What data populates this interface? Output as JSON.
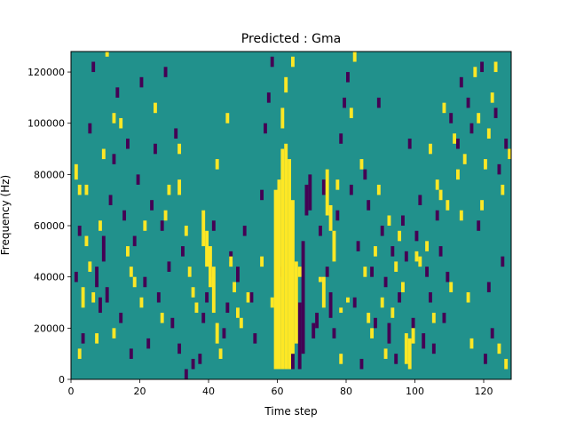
{
  "chart_data": {
    "type": "heatmap",
    "title": "Predicted : Gma",
    "xlabel": "Time step",
    "ylabel": "Frequency (Hz)",
    "xlim": [
      0,
      128
    ],
    "ylim": [
      0,
      128000
    ],
    "x_ticks": [
      0,
      20,
      40,
      60,
      80,
      100,
      120
    ],
    "y_ticks": [
      0,
      20000,
      40000,
      60000,
      80000,
      100000,
      120000
    ],
    "x_tick_labels": [
      "0",
      "20",
      "40",
      "60",
      "80",
      "100",
      "120"
    ],
    "y_tick_labels": [
      "0",
      "20000",
      "40000",
      "60000",
      "80000",
      "100000",
      "120000"
    ],
    "colormap": "viridis",
    "colors": {
      "background": "#21918c",
      "low": "#440154",
      "high": "#fde725"
    },
    "grid": false,
    "background_level": 0,
    "levels": [
      -1,
      0,
      1
    ],
    "bin_height_hz": 2000,
    "cells": {
      "high": [
        [
          10,
          126000,
          128000
        ],
        [
          24,
          104000,
          108000
        ],
        [
          31,
          88000,
          92000
        ],
        [
          9,
          86000,
          90000
        ],
        [
          1,
          78000,
          84000
        ],
        [
          2,
          72000,
          76000
        ],
        [
          4,
          72000,
          76000
        ],
        [
          8,
          58000,
          62000
        ],
        [
          4,
          52000,
          56000
        ],
        [
          5,
          42000,
          46000
        ],
        [
          3,
          28000,
          36000
        ],
        [
          6,
          30000,
          34000
        ],
        [
          12,
          16000,
          20000
        ],
        [
          7,
          14000,
          18000
        ],
        [
          2,
          8000,
          12000
        ],
        [
          20,
          28000,
          32000
        ],
        [
          18,
          36000,
          40000
        ],
        [
          21,
          58000,
          62000
        ],
        [
          14,
          98000,
          102000
        ],
        [
          12,
          100000,
          104000
        ],
        [
          31,
          72000,
          78000
        ],
        [
          33,
          56000,
          60000
        ],
        [
          34,
          40000,
          44000
        ],
        [
          35,
          32000,
          36000
        ],
        [
          36,
          26000,
          30000
        ],
        [
          38,
          52000,
          66000
        ],
        [
          39,
          44000,
          58000
        ],
        [
          40,
          36000,
          52000
        ],
        [
          41,
          26000,
          44000
        ],
        [
          42,
          14000,
          22000
        ],
        [
          43,
          8000,
          12000
        ],
        [
          46,
          44000,
          48000
        ],
        [
          45,
          100000,
          104000
        ],
        [
          42,
          82000,
          86000
        ],
        [
          47,
          34000,
          38000
        ],
        [
          48,
          24000,
          28000
        ],
        [
          49,
          20000,
          24000
        ],
        [
          51,
          30000,
          34000
        ],
        [
          55,
          44000,
          48000
        ],
        [
          58,
          28000,
          32000
        ],
        [
          59,
          4000,
          74000
        ],
        [
          60,
          4000,
          78000
        ],
        [
          61,
          4000,
          90000
        ],
        [
          62,
          4000,
          92000
        ],
        [
          63,
          4000,
          86000
        ],
        [
          64,
          10000,
          70000
        ],
        [
          65,
          14000,
          46000
        ],
        [
          61,
          98000,
          106000
        ],
        [
          62,
          112000,
          118000
        ],
        [
          64,
          122000,
          126000
        ],
        [
          66,
          40000,
          44000
        ],
        [
          72,
          38000,
          40000
        ],
        [
          73,
          28000,
          40000
        ],
        [
          74,
          64000,
          82000
        ],
        [
          75,
          58000,
          68000
        ],
        [
          76,
          46000,
          58000
        ],
        [
          77,
          74000,
          78000
        ],
        [
          78,
          6000,
          10000
        ],
        [
          78,
          26000,
          28000
        ],
        [
          80,
          30000,
          32000
        ],
        [
          81,
          102000,
          106000
        ],
        [
          82,
          124000,
          128000
        ],
        [
          84,
          82000,
          86000
        ],
        [
          85,
          40000,
          44000
        ],
        [
          86,
          22000,
          26000
        ],
        [
          88,
          48000,
          52000
        ],
        [
          89,
          72000,
          76000
        ],
        [
          90,
          28000,
          32000
        ],
        [
          92,
          60000,
          64000
        ],
        [
          94,
          42000,
          46000
        ],
        [
          95,
          54000,
          58000
        ],
        [
          96,
          34000,
          38000
        ],
        [
          97,
          6000,
          18000
        ],
        [
          98,
          4000,
          16000
        ],
        [
          99,
          14000,
          20000
        ],
        [
          100,
          46000,
          50000
        ],
        [
          101,
          44000,
          48000
        ],
        [
          103,
          50000,
          54000
        ],
        [
          104,
          88000,
          92000
        ],
        [
          105,
          22000,
          26000
        ],
        [
          106,
          74000,
          78000
        ],
        [
          107,
          70000,
          74000
        ],
        [
          108,
          104000,
          108000
        ],
        [
          109,
          66000,
          70000
        ],
        [
          110,
          34000,
          38000
        ],
        [
          111,
          92000,
          96000
        ],
        [
          112,
          78000,
          82000
        ],
        [
          113,
          62000,
          66000
        ],
        [
          114,
          84000,
          88000
        ],
        [
          116,
          12000,
          16000
        ],
        [
          117,
          118000,
          122000
        ],
        [
          118,
          100000,
          104000
        ],
        [
          119,
          66000,
          70000
        ],
        [
          120,
          82000,
          86000
        ],
        [
          121,
          94000,
          98000
        ],
        [
          122,
          108000,
          112000
        ],
        [
          123,
          120000,
          124000
        ],
        [
          124,
          10000,
          14000
        ],
        [
          125,
          72000,
          76000
        ],
        [
          126,
          4000,
          8000
        ],
        [
          127,
          86000,
          90000
        ],
        [
          27,
          62000,
          66000
        ],
        [
          28,
          72000,
          76000
        ],
        [
          16,
          48000,
          52000
        ],
        [
          17,
          40000,
          44000
        ],
        [
          26,
          22000,
          26000
        ],
        [
          87,
          16000,
          20000
        ],
        [
          91,
          8000,
          12000
        ],
        [
          93,
          24000,
          28000
        ],
        [
          115,
          30000,
          34000
        ]
      ],
      "low": [
        [
          33,
          0,
          4000
        ],
        [
          35,
          4000,
          8000
        ],
        [
          37,
          6000,
          10000
        ],
        [
          38,
          22000,
          26000
        ],
        [
          39,
          30000,
          34000
        ],
        [
          40,
          40000,
          46000
        ],
        [
          41,
          58000,
          62000
        ],
        [
          44,
          16000,
          20000
        ],
        [
          45,
          26000,
          30000
        ],
        [
          46,
          46000,
          50000
        ],
        [
          48,
          38000,
          44000
        ],
        [
          50,
          56000,
          60000
        ],
        [
          52,
          30000,
          34000
        ],
        [
          53,
          14000,
          18000
        ],
        [
          55,
          70000,
          74000
        ],
        [
          56,
          96000,
          100000
        ],
        [
          57,
          108000,
          112000
        ],
        [
          58,
          122000,
          126000
        ],
        [
          60,
          40000,
          44000
        ],
        [
          64,
          4000,
          10000
        ],
        [
          66,
          4000,
          30000
        ],
        [
          67,
          10000,
          54000
        ],
        [
          68,
          64000,
          76000
        ],
        [
          69,
          66000,
          80000
        ],
        [
          70,
          16000,
          22000
        ],
        [
          71,
          20000,
          26000
        ],
        [
          72,
          56000,
          60000
        ],
        [
          73,
          72000,
          78000
        ],
        [
          74,
          40000,
          44000
        ],
        [
          75,
          24000,
          34000
        ],
        [
          76,
          16000,
          20000
        ],
        [
          77,
          62000,
          66000
        ],
        [
          78,
          92000,
          96000
        ],
        [
          79,
          106000,
          110000
        ],
        [
          80,
          116000,
          120000
        ],
        [
          81,
          72000,
          76000
        ],
        [
          82,
          28000,
          32000
        ],
        [
          83,
          50000,
          54000
        ],
        [
          84,
          4000,
          8000
        ],
        [
          85,
          78000,
          82000
        ],
        [
          86,
          66000,
          70000
        ],
        [
          87,
          40000,
          44000
        ],
        [
          88,
          20000,
          24000
        ],
        [
          89,
          106000,
          110000
        ],
        [
          90,
          56000,
          60000
        ],
        [
          91,
          36000,
          40000
        ],
        [
          92,
          14000,
          22000
        ],
        [
          93,
          48000,
          52000
        ],
        [
          94,
          6000,
          10000
        ],
        [
          95,
          30000,
          34000
        ],
        [
          96,
          60000,
          64000
        ],
        [
          97,
          46000,
          50000
        ],
        [
          98,
          90000,
          94000
        ],
        [
          99,
          20000,
          24000
        ],
        [
          100,
          54000,
          58000
        ],
        [
          101,
          68000,
          72000
        ],
        [
          102,
          12000,
          18000
        ],
        [
          103,
          40000,
          44000
        ],
        [
          104,
          30000,
          34000
        ],
        [
          105,
          10000,
          14000
        ],
        [
          106,
          62000,
          66000
        ],
        [
          107,
          48000,
          52000
        ],
        [
          108,
          22000,
          26000
        ],
        [
          109,
          38000,
          42000
        ],
        [
          110,
          100000,
          104000
        ],
        [
          112,
          90000,
          94000
        ],
        [
          113,
          114000,
          118000
        ],
        [
          115,
          106000,
          110000
        ],
        [
          116,
          96000,
          100000
        ],
        [
          118,
          58000,
          62000
        ],
        [
          119,
          120000,
          124000
        ],
        [
          120,
          6000,
          10000
        ],
        [
          121,
          34000,
          38000
        ],
        [
          122,
          16000,
          20000
        ],
        [
          123,
          102000,
          106000
        ],
        [
          124,
          80000,
          84000
        ],
        [
          125,
          44000,
          48000
        ],
        [
          126,
          90000,
          94000
        ],
        [
          127,
          86000,
          90000
        ],
        [
          1,
          38000,
          42000
        ],
        [
          2,
          56000,
          60000
        ],
        [
          3,
          14000,
          18000
        ],
        [
          5,
          96000,
          100000
        ],
        [
          6,
          120000,
          124000
        ],
        [
          7,
          36000,
          44000
        ],
        [
          8,
          26000,
          32000
        ],
        [
          9,
          46000,
          56000
        ],
        [
          10,
          30000,
          36000
        ],
        [
          11,
          68000,
          72000
        ],
        [
          12,
          84000,
          88000
        ],
        [
          13,
          110000,
          114000
        ],
        [
          14,
          22000,
          26000
        ],
        [
          15,
          62000,
          66000
        ],
        [
          16,
          90000,
          94000
        ],
        [
          17,
          8000,
          12000
        ],
        [
          18,
          52000,
          56000
        ],
        [
          19,
          76000,
          80000
        ],
        [
          20,
          114000,
          118000
        ],
        [
          21,
          36000,
          40000
        ],
        [
          22,
          12000,
          16000
        ],
        [
          23,
          66000,
          70000
        ],
        [
          24,
          88000,
          92000
        ],
        [
          25,
          30000,
          34000
        ],
        [
          26,
          58000,
          62000
        ],
        [
          27,
          118000,
          122000
        ],
        [
          28,
          42000,
          46000
        ],
        [
          29,
          20000,
          24000
        ],
        [
          30,
          94000,
          98000
        ],
        [
          31,
          10000,
          14000
        ],
        [
          32,
          48000,
          52000
        ]
      ]
    }
  }
}
